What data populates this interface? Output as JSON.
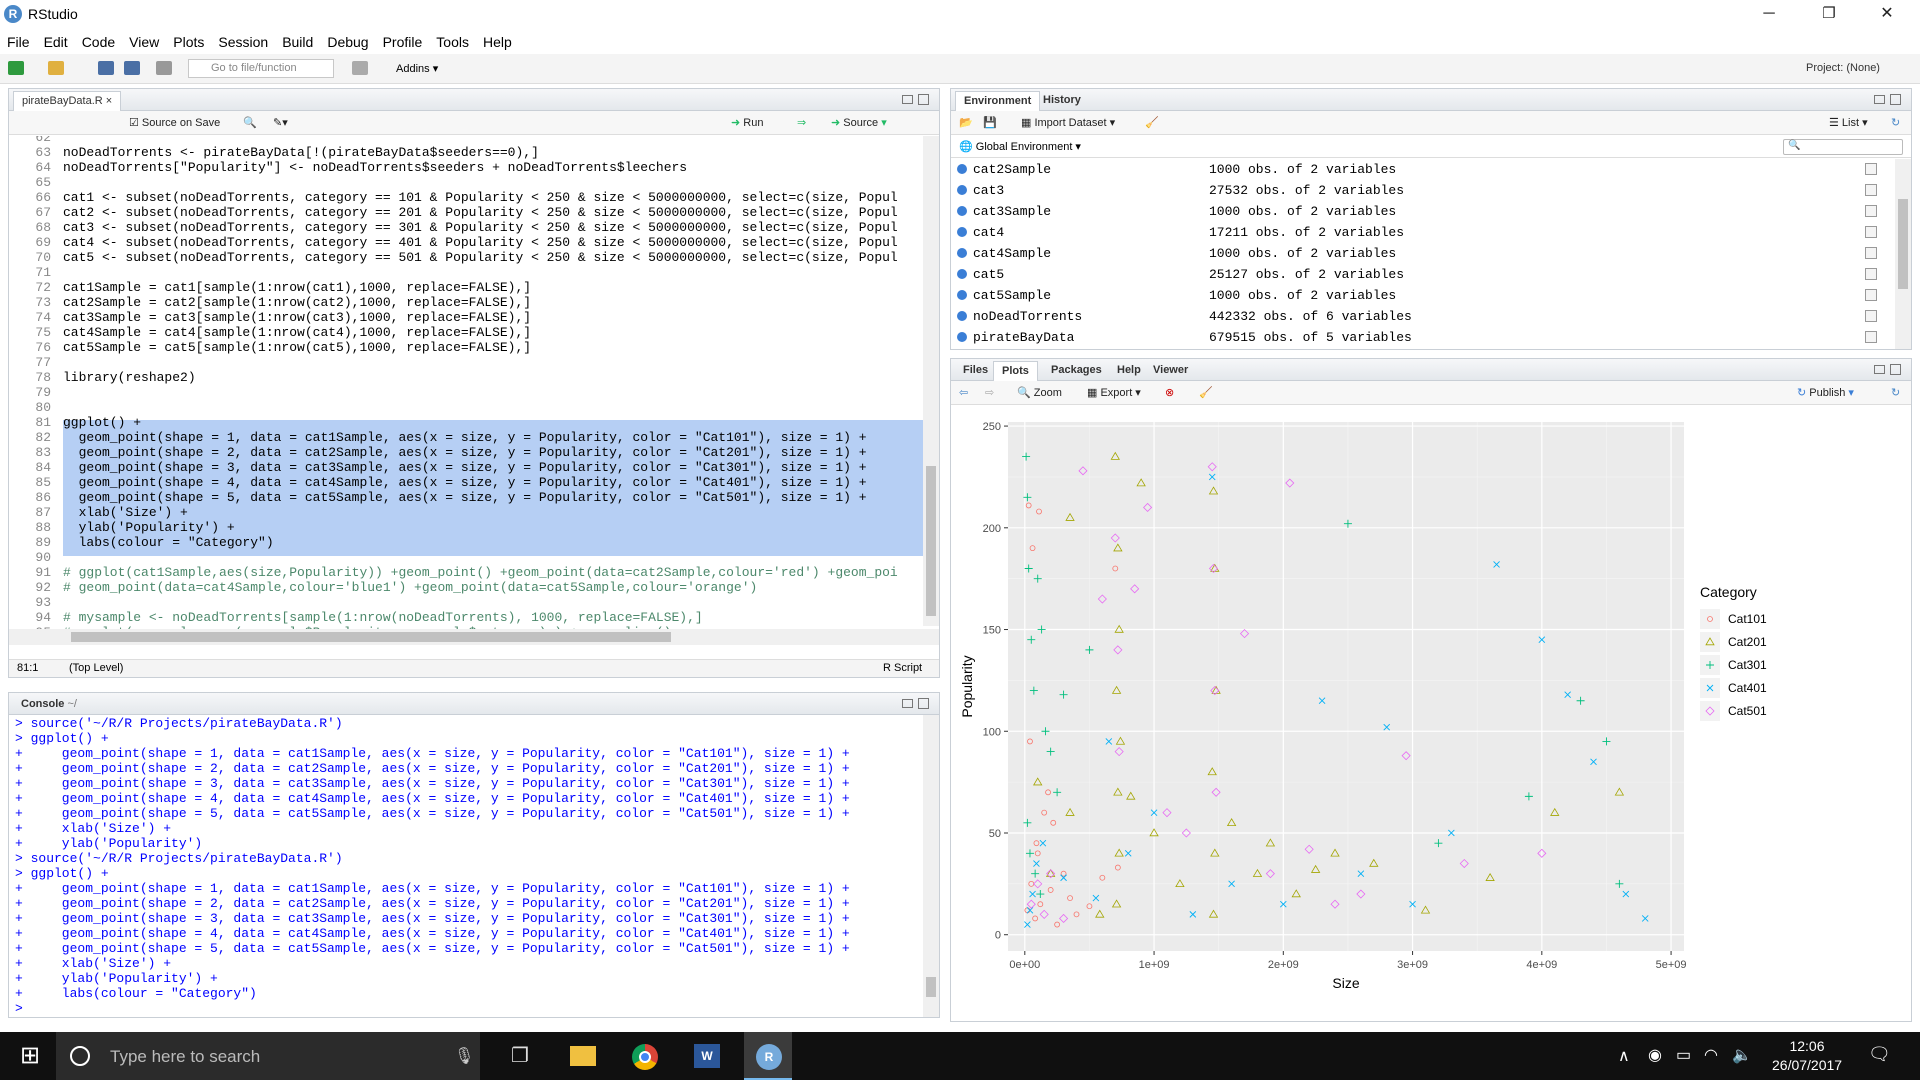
{
  "window": {
    "title": "RStudio",
    "logo": "R",
    "minimize": "─",
    "restore": "❐",
    "close": "✕"
  },
  "menu": [
    "File",
    "Edit",
    "Code",
    "View",
    "Plots",
    "Session",
    "Build",
    "Debug",
    "Profile",
    "Tools",
    "Help"
  ],
  "toolbar": {
    "goto_placeholder": "Go to file/function",
    "addins": "Addins",
    "project": "Project: (None)"
  },
  "editor": {
    "tab": "pirateBayData.R",
    "source_on_save": "Source on Save",
    "run": "Run",
    "source": "Source",
    "status_pos": "81:1",
    "status_scope": "(Top Level)",
    "status_type": "R Script",
    "first_line": 62,
    "lines": [
      "",
      "noDeadTorrents <- pirateBayData[!(pirateBayData$seeders==0),]",
      "noDeadTorrents[\"Popularity\"] <- noDeadTorrents$seeders + noDeadTorrents$leechers",
      "",
      "cat1 <- subset(noDeadTorrents, category == 101 & Popularity < 250 & size < 5000000000, select=c(size, Popul",
      "cat2 <- subset(noDeadTorrents, category == 201 & Popularity < 250 & size < 5000000000, select=c(size, Popul",
      "cat3 <- subset(noDeadTorrents, category == 301 & Popularity < 250 & size < 5000000000, select=c(size, Popul",
      "cat4 <- subset(noDeadTorrents, category == 401 & Popularity < 250 & size < 5000000000, select=c(size, Popul",
      "cat5 <- subset(noDeadTorrents, category == 501 & Popularity < 250 & size < 5000000000, select=c(size, Popul",
      "",
      "cat1Sample = cat1[sample(1:nrow(cat1),1000, replace=FALSE),]",
      "cat2Sample = cat2[sample(1:nrow(cat2),1000, replace=FALSE),]",
      "cat3Sample = cat3[sample(1:nrow(cat3),1000, replace=FALSE),]",
      "cat4Sample = cat4[sample(1:nrow(cat4),1000, replace=FALSE),]",
      "cat5Sample = cat5[sample(1:nrow(cat5),1000, replace=FALSE),]",
      "",
      "library(reshape2)",
      "",
      "",
      "ggplot() +",
      "  geom_point(shape = 1, data = cat1Sample, aes(x = size, y = Popularity, color = \"Cat101\"), size = 1) +",
      "  geom_point(shape = 2, data = cat2Sample, aes(x = size, y = Popularity, color = \"Cat201\"), size = 1) +",
      "  geom_point(shape = 3, data = cat3Sample, aes(x = size, y = Popularity, color = \"Cat301\"), size = 1) +",
      "  geom_point(shape = 4, data = cat4Sample, aes(x = size, y = Popularity, color = \"Cat401\"), size = 1) +",
      "  geom_point(shape = 5, data = cat5Sample, aes(x = size, y = Popularity, color = \"Cat501\"), size = 1) +",
      "  xlab('Size') +",
      "  ylab('Popularity') +",
      "  labs(colour = \"Category\")",
      "",
      "# ggplot(cat1Sample,aes(size,Popularity)) +geom_point() +geom_point(data=cat2Sample,colour='red') +geom_poi",
      "# geom_point(data=cat4Sample,colour='blue1') +geom_point(data=cat5Sample,colour='orange')",
      "",
      "# mysample <- noDeadTorrents[sample(1:nrow(noDeadTorrents), 1000, replace=FALSE),]",
      "# ggplot(mysample, aes(mysample$Popularity, mysample$category) ) + geom_line()",
      ""
    ]
  },
  "console": {
    "title": "Console",
    "path": "~/",
    "lines": [
      "> source('~/R/R Projects/pirateBayData.R')",
      "> ggplot() +",
      "+     geom_point(shape = 1, data = cat1Sample, aes(x = size, y = Popularity, color = \"Cat101\"), size = 1) +",
      "+     geom_point(shape = 2, data = cat2Sample, aes(x = size, y = Popularity, color = \"Cat201\"), size = 1) +",
      "+     geom_point(shape = 3, data = cat3Sample, aes(x = size, y = Popularity, color = \"Cat301\"), size = 1) +",
      "+     geom_point(shape = 4, data = cat4Sample, aes(x = size, y = Popularity, color = \"Cat401\"), size = 1) +",
      "+     geom_point(shape = 5, data = cat5Sample, aes(x = size, y = Popularity, color = \"Cat501\"), size = 1) +",
      "+     xlab('Size') +",
      "+     ylab('Popularity')",
      "> source('~/R/R Projects/pirateBayData.R')",
      "> ggplot() +",
      "+     geom_point(shape = 1, data = cat1Sample, aes(x = size, y = Popularity, color = \"Cat101\"), size = 1) +",
      "+     geom_point(shape = 2, data = cat2Sample, aes(x = size, y = Popularity, color = \"Cat201\"), size = 1) +",
      "+     geom_point(shape = 3, data = cat3Sample, aes(x = size, y = Popularity, color = \"Cat301\"), size = 1) +",
      "+     geom_point(shape = 4, data = cat4Sample, aes(x = size, y = Popularity, color = \"Cat401\"), size = 1) +",
      "+     geom_point(shape = 5, data = cat5Sample, aes(x = size, y = Popularity, color = \"Cat501\"), size = 1) +",
      "+     xlab('Size') +",
      "+     ylab('Popularity') +",
      "+     labs(colour = \"Category\")",
      "> "
    ]
  },
  "environment": {
    "tabs": [
      "Environment",
      "History"
    ],
    "import": "Import Dataset",
    "list": "List",
    "scope": "Global Environment",
    "rows": [
      {
        "name": "cat2Sample",
        "value": "1000 obs. of 2 variables"
      },
      {
        "name": "cat3",
        "value": "27532 obs. of 2 variables"
      },
      {
        "name": "cat3Sample",
        "value": "1000 obs. of 2 variables"
      },
      {
        "name": "cat4",
        "value": "17211 obs. of 2 variables"
      },
      {
        "name": "cat4Sample",
        "value": "1000 obs. of 2 variables"
      },
      {
        "name": "cat5",
        "value": "25127 obs. of 2 variables"
      },
      {
        "name": "cat5Sample",
        "value": "1000 obs. of 2 variables"
      },
      {
        "name": "noDeadTorrents",
        "value": "442332 obs. of 6 variables"
      },
      {
        "name": "pirateBayData",
        "value": "679515 obs. of 5 variables"
      }
    ]
  },
  "files": {
    "tabs": [
      "Files",
      "Plots",
      "Packages",
      "Help",
      "Viewer"
    ],
    "zoom": "Zoom",
    "export": "Export",
    "publish": "Publish"
  },
  "chart_data": {
    "type": "scatter",
    "xlabel": "Size",
    "ylabel": "Popularity",
    "legend_title": "Category",
    "legend_position": "right",
    "xlim": [
      -130000000.0,
      5100000000.0
    ],
    "ylim": [
      -8,
      252
    ],
    "xticks": [
      {
        "v": 0,
        "label": "0e+00"
      },
      {
        "v": 1000000000.0,
        "label": "1e+09"
      },
      {
        "v": 2000000000.0,
        "label": "2e+09"
      },
      {
        "v": 3000000000.0,
        "label": "3e+09"
      },
      {
        "v": 4000000000.0,
        "label": "4e+09"
      },
      {
        "v": 5000000000.0,
        "label": "5e+09"
      }
    ],
    "yticks": [
      0,
      50,
      100,
      150,
      200,
      250
    ],
    "grid": true,
    "series": [
      {
        "name": "Cat101",
        "color": "#F8766D",
        "shape": "circle",
        "x": [
          20000000.0,
          50000000.0,
          80000000.0,
          100000000.0,
          120000000.0,
          150000000.0,
          200000000.0,
          250000000.0,
          300000000.0,
          350000000.0,
          30000000.0,
          60000000.0,
          110000000.0,
          180000000.0,
          220000000.0,
          400000000.0,
          500000000.0,
          600000000.0,
          700000000.0,
          720000000.0,
          40000000.0,
          90000000.0
        ],
        "y": [
          12,
          25,
          8,
          40,
          15,
          60,
          22,
          5,
          30,
          18,
          211,
          190,
          208,
          70,
          55,
          10,
          14,
          28,
          180,
          33,
          95,
          45
        ]
      },
      {
        "name": "Cat201",
        "color": "#A3A500",
        "shape": "triangle",
        "x": [
          700000000.0,
          720000000.0,
          730000000.0,
          710000000.0,
          740000000.0,
          720000000.0,
          730000000.0,
          710000000.0,
          1460000000.0,
          1470000000.0,
          1480000000.0,
          1450000000.0,
          1470000000.0,
          1460000000.0,
          350000000.0,
          900000000.0,
          1200000000.0,
          1600000000.0,
          1800000000.0,
          2100000000.0,
          2400000000.0,
          2700000000.0,
          3100000000.0,
          3600000000.0,
          4100000000.0,
          4600000000.0,
          820000000.0,
          1000000000.0,
          350000000.0,
          580000000.0,
          1900000000.0,
          2250000000.0,
          100000000.0,
          200000000.0
        ],
        "y": [
          235,
          190,
          150,
          120,
          95,
          70,
          40,
          15,
          218,
          180,
          120,
          80,
          40,
          10,
          205,
          222,
          25,
          55,
          30,
          20,
          40,
          35,
          12,
          28,
          60,
          70,
          68,
          50,
          60,
          10,
          45,
          32,
          75,
          30
        ]
      },
      {
        "name": "Cat301",
        "color": "#00BF7D",
        "shape": "plus",
        "x": [
          10000000.0,
          20000000.0,
          30000000.0,
          50000000.0,
          70000000.0,
          100000000.0,
          130000000.0,
          160000000.0,
          200000000.0,
          250000000.0,
          20000000.0,
          40000000.0,
          80000000.0,
          120000000.0,
          2500000000.0,
          3200000000.0,
          3900000000.0,
          4300000000.0,
          4500000000.0,
          4600000000.0,
          300000000.0,
          500000000.0
        ],
        "y": [
          235,
          215,
          180,
          145,
          120,
          175,
          150,
          100,
          90,
          70,
          55,
          40,
          30,
          20,
          202,
          45,
          68,
          115,
          95,
          25,
          118,
          140
        ]
      },
      {
        "name": "Cat401",
        "color": "#00B0F6",
        "shape": "x",
        "x": [
          20000000.0,
          40000000.0,
          60000000.0,
          90000000.0,
          140000000.0,
          300000000.0,
          550000000.0,
          800000000.0,
          1000000000.0,
          1300000000.0,
          1600000000.0,
          2000000000.0,
          2300000000.0,
          2800000000.0,
          3300000000.0,
          3650000000.0,
          4000000000.0,
          4200000000.0,
          4400000000.0,
          4650000000.0,
          4800000000.0,
          2600000000.0,
          3000000000.0,
          1450000000.0,
          650000000.0
        ],
        "y": [
          5,
          12,
          20,
          35,
          45,
          28,
          18,
          40,
          60,
          10,
          25,
          15,
          115,
          102,
          50,
          182,
          145,
          118,
          85,
          20,
          8,
          30,
          15,
          225,
          95
        ]
      },
      {
        "name": "Cat501",
        "color": "#E76BF3",
        "shape": "diamond",
        "x": [
          50000000.0,
          100000000.0,
          150000000.0,
          200000000.0,
          300000000.0,
          450000000.0,
          700000000.0,
          720000000.0,
          730000000.0,
          950000000.0,
          1100000000.0,
          1450000000.0,
          1460000000.0,
          1470000000.0,
          1480000000.0,
          1700000000.0,
          1900000000.0,
          2050000000.0,
          2200000000.0,
          2600000000.0,
          2950000000.0,
          3400000000.0,
          4000000000.0,
          850000000.0,
          600000000.0,
          1250000000.0,
          2400000000.0
        ],
        "y": [
          15,
          25,
          10,
          30,
          8,
          228,
          195,
          140,
          90,
          210,
          60,
          230,
          180,
          120,
          70,
          148,
          30,
          222,
          42,
          20,
          88,
          35,
          40,
          170,
          165,
          50,
          15
        ]
      }
    ]
  },
  "taskbar": {
    "search_placeholder": "Type here to search",
    "time": "12:06",
    "date": "26/07/2017"
  }
}
